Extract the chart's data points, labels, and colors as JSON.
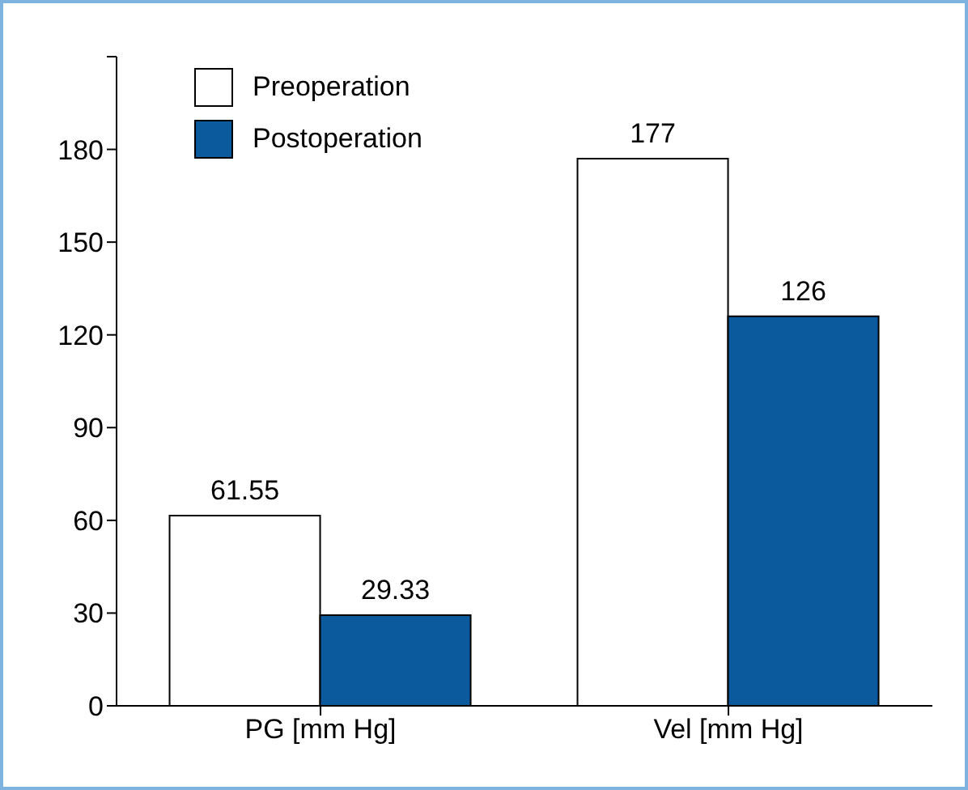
{
  "chart_data": {
    "type": "bar",
    "categories": [
      "PG [mm Hg]",
      "Vel [mm Hg]"
    ],
    "series": [
      {
        "name": "Preoperation",
        "color": "#ffffff",
        "values": [
          61.55,
          177
        ]
      },
      {
        "name": "Postoperation",
        "color": "#0b5a9e",
        "values": [
          29.33,
          126
        ]
      }
    ],
    "ylim": [
      0,
      210
    ],
    "yticks": [
      0,
      30,
      60,
      90,
      120,
      150,
      180,
      {
        "value": 210,
        "label": null
      }
    ],
    "data_labels": true,
    "grid": false,
    "legend": "top left"
  }
}
